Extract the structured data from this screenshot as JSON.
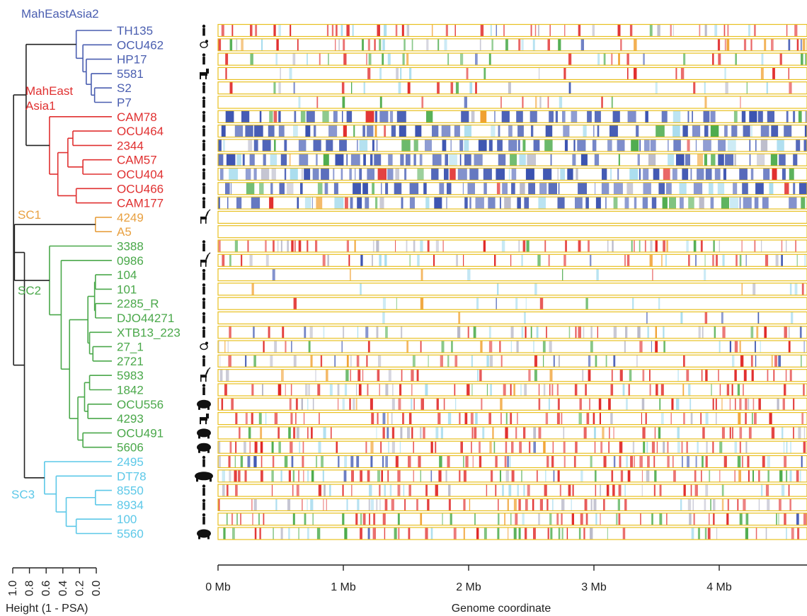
{
  "chart_data": {
    "type": "heatmap",
    "xlabel": "Genome coordinate",
    "tree_axis_label": "Height (1 - PSA)",
    "x_ticks": [
      "0 Mb",
      "1 Mb",
      "2 Mb",
      "3 Mb",
      "4 Mb"
    ],
    "x_range_mb": [
      0,
      4.65
    ],
    "tree_ticks": [
      "1.0",
      "0.8",
      "0.6",
      "0.4",
      "0.2",
      "0.0"
    ],
    "groups": [
      {
        "name": "MahEastAsia2",
        "lines": [
          "MahEastAsia2"
        ],
        "color": "#4a5eb0"
      },
      {
        "name": "MahEastAsia1",
        "lines": [
          "MahEast",
          "Asia1"
        ],
        "color": "#e03030"
      },
      {
        "name": "SC1",
        "lines": [
          "SC1"
        ],
        "color": "#e8a040"
      },
      {
        "name": "SC2",
        "lines": [
          "SC2"
        ],
        "color": "#4aa84a"
      },
      {
        "name": "SC3",
        "lines": [
          "SC3"
        ],
        "color": "#5cc8e8"
      }
    ],
    "samples": [
      {
        "name": "TH135",
        "group": "MahEastAsia2",
        "host": "human",
        "pattern": "red"
      },
      {
        "name": "OCU462",
        "group": "MahEastAsia2",
        "host": "bird",
        "pattern": "mixed"
      },
      {
        "name": "HP17",
        "group": "MahEastAsia2",
        "host": "human",
        "pattern": "sparse"
      },
      {
        "name": "5581",
        "group": "MahEastAsia2",
        "host": "dog",
        "pattern": "sparse"
      },
      {
        "name": "S2",
        "group": "MahEastAsia2",
        "host": "human",
        "pattern": "sparse"
      },
      {
        "name": "P7",
        "group": "MahEastAsia2",
        "host": "human",
        "pattern": "sparse"
      },
      {
        "name": "CAM78",
        "group": "MahEastAsia1",
        "host": "human",
        "pattern": "blue"
      },
      {
        "name": "OCU464",
        "group": "MahEastAsia1",
        "host": "human",
        "pattern": "blue"
      },
      {
        "name": "2344",
        "group": "MahEastAsia1",
        "host": "human",
        "pattern": "blue"
      },
      {
        "name": "CAM57",
        "group": "MahEastAsia1",
        "host": "human",
        "pattern": "blue"
      },
      {
        "name": "OCU404",
        "group": "MahEastAsia1",
        "host": "human",
        "pattern": "blue"
      },
      {
        "name": "OCU466",
        "group": "MahEastAsia1",
        "host": "human",
        "pattern": "blue"
      },
      {
        "name": "CAM177",
        "group": "MahEastAsia1",
        "host": "human",
        "pattern": "blue"
      },
      {
        "name": "4249",
        "group": "SC1",
        "host": "deer",
        "pattern": "empty"
      },
      {
        "name": "A5",
        "group": "SC1",
        "host": "none",
        "pattern": "empty"
      },
      {
        "name": "3388",
        "group": "SC2",
        "host": "human",
        "pattern": "red"
      },
      {
        "name": "0986",
        "group": "SC2",
        "host": "deer",
        "pattern": "mixed"
      },
      {
        "name": "104",
        "group": "SC2",
        "host": "human",
        "pattern": "cyan"
      },
      {
        "name": "101",
        "group": "SC2",
        "host": "human",
        "pattern": "cyan"
      },
      {
        "name": "2285_R",
        "group": "SC2",
        "host": "human",
        "pattern": "cyan"
      },
      {
        "name": "DJO44271",
        "group": "SC2",
        "host": "human",
        "pattern": "cyan"
      },
      {
        "name": "XTB13_223",
        "group": "SC2",
        "host": "human",
        "pattern": "mixed"
      },
      {
        "name": "27_1",
        "group": "SC2",
        "host": "bird",
        "pattern": "mixed"
      },
      {
        "name": "2721",
        "group": "SC2",
        "host": "human",
        "pattern": "mixed"
      },
      {
        "name": "5983",
        "group": "SC2",
        "host": "deer",
        "pattern": "red"
      },
      {
        "name": "1842",
        "group": "SC2",
        "host": "human",
        "pattern": "red"
      },
      {
        "name": "OCU556",
        "group": "SC2",
        "host": "pig",
        "pattern": "red"
      },
      {
        "name": "4293",
        "group": "SC2",
        "host": "dog",
        "pattern": "red"
      },
      {
        "name": "OCU491",
        "group": "SC2",
        "host": "pig",
        "pattern": "red"
      },
      {
        "name": "5606",
        "group": "SC2",
        "host": "pig",
        "pattern": "red"
      },
      {
        "name": "2495",
        "group": "SC3",
        "host": "human",
        "pattern": "mixedblue"
      },
      {
        "name": "DT78",
        "group": "SC3",
        "host": "elephant",
        "pattern": "redgreen"
      },
      {
        "name": "8550",
        "group": "SC3",
        "host": "human",
        "pattern": "red"
      },
      {
        "name": "8934",
        "group": "SC3",
        "host": "human",
        "pattern": "red"
      },
      {
        "name": "100",
        "group": "SC3",
        "host": "human",
        "pattern": "redgreen"
      },
      {
        "name": "5560",
        "group": "SC3",
        "host": "pig",
        "pattern": "redgreen"
      }
    ],
    "track_colors": [
      "#e02828",
      "#3a52b0",
      "#4aaa4a",
      "#a8dcee",
      "#f0a030",
      "#b8b8c8"
    ],
    "row_border_color": "#e8c020"
  }
}
